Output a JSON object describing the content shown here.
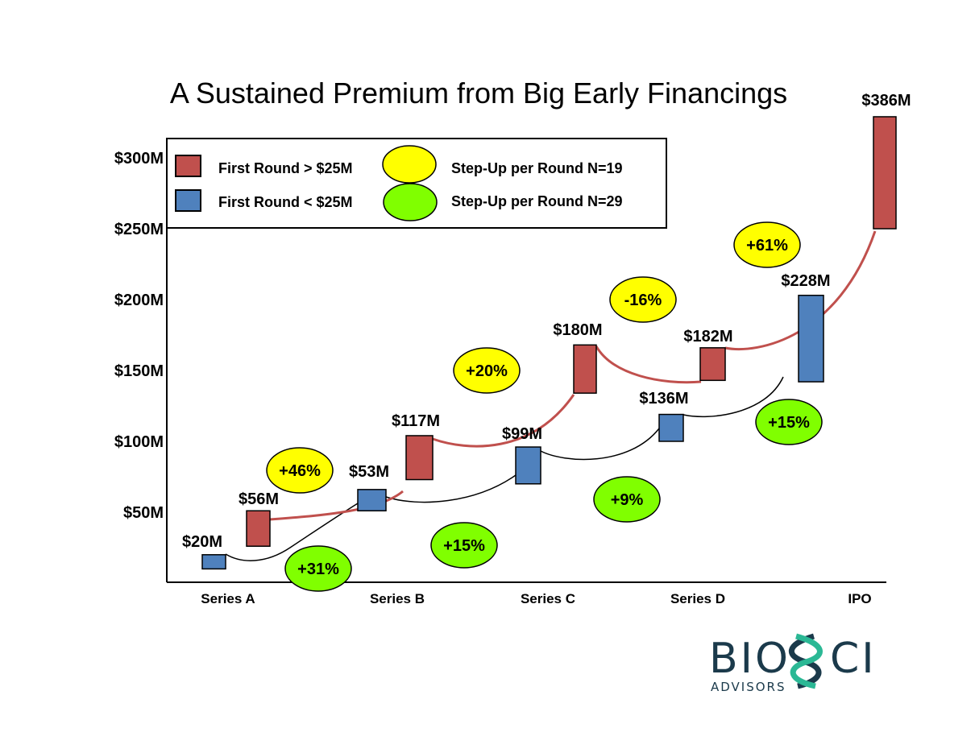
{
  "chart_data": {
    "type": "floating-bar",
    "title": "A Sustained Premium from Big Early Financings",
    "ylabel": "",
    "xlabel": "",
    "ylim": [
      0,
      330
    ],
    "y_ticks": [
      {
        "value": 50,
        "label": "$50M"
      },
      {
        "value": 100,
        "label": "$100M"
      },
      {
        "value": 150,
        "label": "$150M"
      },
      {
        "value": 200,
        "label": "$200M"
      },
      {
        "value": 250,
        "label": "$250M"
      },
      {
        "value": 300,
        "label": "$300M"
      }
    ],
    "categories": [
      "Series A",
      "Series B",
      "Series C",
      "Series D",
      "IPO"
    ],
    "legend": {
      "placement": "top-left",
      "items": [
        {
          "label": "First Round > $25M",
          "color": "#c0504d"
        },
        {
          "label": "First Round < $25M",
          "color": "#4f81bd"
        },
        {
          "label": "Step-Up per Round N=19",
          "color": "#ffff00"
        },
        {
          "label": "Step-Up per Round N=29",
          "color": "#80ff00"
        }
      ]
    },
    "series": [
      {
        "name": "First Round > $25M",
        "color": "#c0504d",
        "bars": [
          {
            "category": "Series A",
            "low": 26,
            "high": 51,
            "label": "$56M"
          },
          {
            "category": "Series B",
            "low": 73,
            "high": 104,
            "label": "$117M"
          },
          {
            "category": "Series C",
            "low": 134,
            "high": 168,
            "label": "$180M"
          },
          {
            "category": "Series D",
            "low": 143,
            "high": 166,
            "label": "$182M"
          },
          {
            "category": "IPO",
            "low": 250,
            "high": 329,
            "label": "$386M"
          }
        ],
        "step_ups": [
          "+46%",
          "+20%",
          "-16%",
          "+61%"
        ],
        "step_color": "#ffff00"
      },
      {
        "name": "First Round < $25M",
        "color": "#4f81bd",
        "bars": [
          {
            "category": "Series A",
            "low": 10,
            "high": 20,
            "label": "$20M"
          },
          {
            "category": "Series B",
            "low": 51,
            "high": 66,
            "label": "$53M"
          },
          {
            "category": "Series C",
            "low": 70,
            "high": 96,
            "label": "$99M"
          },
          {
            "category": "Series D",
            "low": 100,
            "high": 119,
            "label": "$136M"
          },
          {
            "category": "IPO",
            "low": 142,
            "high": 203,
            "label": "$228M"
          }
        ],
        "step_ups": [
          "+31%",
          "+15%",
          "+9%",
          "+15%"
        ],
        "step_color": "#80ff00"
      }
    ]
  },
  "logo": {
    "name": "BIOSCI",
    "sub": "ADVISORS"
  }
}
